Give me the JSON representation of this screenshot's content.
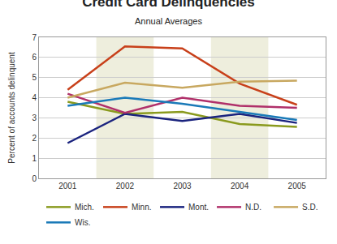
{
  "chart_data": {
    "type": "line",
    "title": "Credit Card Delinquencies",
    "subtitle": "Annual Averages",
    "y_label": "Percent of accounts delinquent",
    "categories": [
      "2001",
      "2002",
      "2003",
      "2004",
      "2005"
    ],
    "series": [
      {
        "name": "Mich.",
        "color": "#8a9a1e",
        "values": [
          3.8,
          3.2,
          3.3,
          2.7,
          2.55
        ]
      },
      {
        "name": "Minn.",
        "color": "#c8401a",
        "values": [
          4.4,
          6.55,
          6.45,
          4.7,
          3.65
        ]
      },
      {
        "name": "Mont.",
        "color": "#1a237e",
        "values": [
          1.75,
          3.2,
          2.85,
          3.2,
          2.75
        ]
      },
      {
        "name": "N.D.",
        "color": "#b0306a",
        "values": [
          4.2,
          3.25,
          4.0,
          3.6,
          3.5
        ]
      },
      {
        "name": "S.D.",
        "color": "#c8a860",
        "values": [
          4.0,
          4.75,
          4.5,
          4.8,
          4.85
        ]
      },
      {
        "name": "Wis.",
        "color": "#1a7ab8",
        "values": [
          3.6,
          4.0,
          3.7,
          3.3,
          2.9
        ]
      }
    ],
    "ylim": [
      0,
      7
    ],
    "yticks": [
      0,
      1,
      2,
      3,
      4,
      5,
      6,
      7
    ],
    "grid": true,
    "legend": "bottom"
  }
}
